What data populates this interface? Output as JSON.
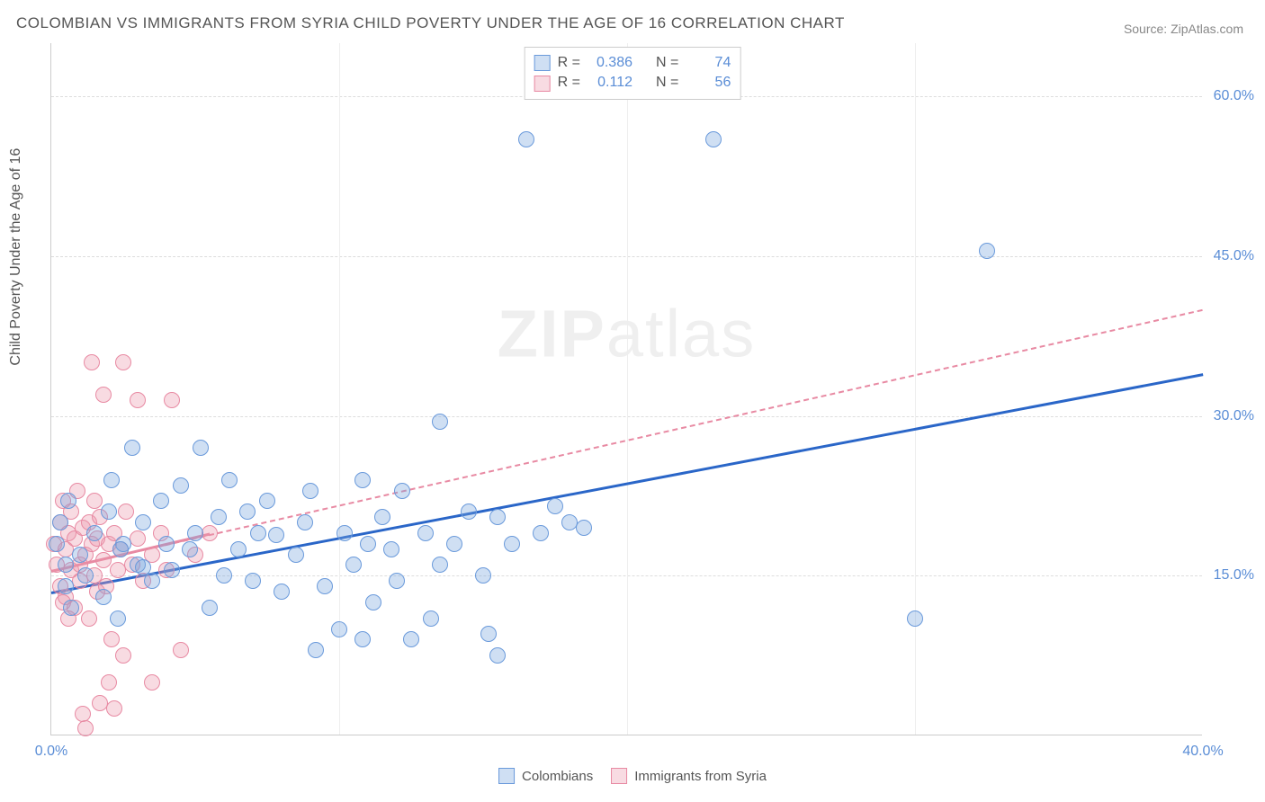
{
  "title": "COLOMBIAN VS IMMIGRANTS FROM SYRIA CHILD POVERTY UNDER THE AGE OF 16 CORRELATION CHART",
  "source": "Source: ZipAtlas.com",
  "ylabel": "Child Poverty Under the Age of 16",
  "watermark_strong": "ZIP",
  "watermark_light": "atlas",
  "chart": {
    "type": "scatter",
    "xlim": [
      0,
      40
    ],
    "ylim": [
      0,
      65
    ],
    "xticks": [
      {
        "v": 0,
        "label": "0.0%"
      },
      {
        "v": 40,
        "label": "40.0%"
      }
    ],
    "xgrid": [
      10,
      20,
      30
    ],
    "yticks": [
      {
        "v": 15,
        "label": "15.0%"
      },
      {
        "v": 30,
        "label": "30.0%"
      },
      {
        "v": 45,
        "label": "45.0%"
      },
      {
        "v": 60,
        "label": "60.0%"
      }
    ],
    "point_radius": 9,
    "series": [
      {
        "name": "Colombians",
        "fill": "rgba(118,162,222,0.35)",
        "stroke": "#6a9adb",
        "r_value": "0.386",
        "n_value": "74",
        "trend": {
          "x1": 0,
          "y1": 13.5,
          "x2": 40,
          "y2": 34,
          "style": "trend-solid",
          "color": "#2a66c8"
        },
        "points": [
          [
            0.2,
            18
          ],
          [
            0.3,
            20
          ],
          [
            0.5,
            16
          ],
          [
            0.5,
            14
          ],
          [
            0.6,
            22
          ],
          [
            0.7,
            12
          ],
          [
            1.0,
            17
          ],
          [
            1.2,
            15
          ],
          [
            1.5,
            19
          ],
          [
            1.8,
            13
          ],
          [
            2.0,
            21
          ],
          [
            2.1,
            24
          ],
          [
            2.3,
            11
          ],
          [
            2.5,
            18
          ],
          [
            2.8,
            27
          ],
          [
            3.0,
            16
          ],
          [
            3.2,
            20
          ],
          [
            3.5,
            14.5
          ],
          [
            3.8,
            22
          ],
          [
            4.0,
            18
          ],
          [
            4.2,
            15.5
          ],
          [
            4.5,
            23.5
          ],
          [
            4.8,
            17.5
          ],
          [
            5.0,
            19
          ],
          [
            5.2,
            27
          ],
          [
            5.5,
            12
          ],
          [
            5.8,
            20.5
          ],
          [
            6.0,
            15
          ],
          [
            6.2,
            24
          ],
          [
            6.5,
            17.5
          ],
          [
            6.8,
            21
          ],
          [
            7.0,
            14.5
          ],
          [
            7.2,
            19
          ],
          [
            7.5,
            22
          ],
          [
            7.8,
            18.8
          ],
          [
            8.0,
            13.5
          ],
          [
            8.5,
            17
          ],
          [
            8.8,
            20
          ],
          [
            9.0,
            23
          ],
          [
            9.5,
            14
          ],
          [
            10.0,
            10
          ],
          [
            10.2,
            19
          ],
          [
            10.5,
            16
          ],
          [
            10.8,
            24
          ],
          [
            11.0,
            18
          ],
          [
            11.2,
            12.5
          ],
          [
            11.5,
            20.5
          ],
          [
            11.8,
            17.5
          ],
          [
            12.0,
            14.5
          ],
          [
            12.2,
            23
          ],
          [
            12.5,
            9
          ],
          [
            13.0,
            19
          ],
          [
            13.2,
            11
          ],
          [
            13.5,
            29.5
          ],
          [
            13.5,
            16
          ],
          [
            14.0,
            18
          ],
          [
            14.5,
            21
          ],
          [
            15.0,
            15
          ],
          [
            15.2,
            9.5
          ],
          [
            15.5,
            20.5
          ],
          [
            16.0,
            18
          ],
          [
            16.5,
            56
          ],
          [
            17.0,
            19
          ],
          [
            17.5,
            21.5
          ],
          [
            18.0,
            20
          ],
          [
            18.5,
            19.5
          ],
          [
            23.0,
            56
          ],
          [
            30.0,
            11
          ],
          [
            32.5,
            45.5
          ],
          [
            2.4,
            17.5
          ],
          [
            3.2,
            15.8
          ],
          [
            9.2,
            8
          ],
          [
            10.8,
            9
          ],
          [
            15.5,
            7.5
          ]
        ]
      },
      {
        "name": "Immigrants from Syria",
        "fill": "rgba(236,152,173,0.35)",
        "stroke": "#e88aa3",
        "r_value": "0.112",
        "n_value": "56",
        "trend": {
          "x1": 0,
          "y1": 15.5,
          "x2": 40,
          "y2": 40,
          "style": "trend-dash",
          "color": "#e88aa3"
        },
        "trend_solid_segment": {
          "x1": 0,
          "y1": 15.5,
          "x2": 5.5,
          "y2": 19,
          "style": "trend-solid",
          "color": "#e88aa3"
        },
        "points": [
          [
            0.1,
            18
          ],
          [
            0.2,
            16
          ],
          [
            0.3,
            14
          ],
          [
            0.3,
            20
          ],
          [
            0.4,
            22
          ],
          [
            0.5,
            17.5
          ],
          [
            0.5,
            13
          ],
          [
            0.6,
            19
          ],
          [
            0.7,
            15.5
          ],
          [
            0.7,
            21
          ],
          [
            0.8,
            18.5
          ],
          [
            0.8,
            12
          ],
          [
            0.9,
            23
          ],
          [
            1.0,
            16
          ],
          [
            1.0,
            14.5
          ],
          [
            1.1,
            19.5
          ],
          [
            1.1,
            2
          ],
          [
            1.2,
            17
          ],
          [
            1.2,
            0.7
          ],
          [
            1.3,
            20
          ],
          [
            1.3,
            11
          ],
          [
            1.4,
            18
          ],
          [
            1.4,
            35
          ],
          [
            1.5,
            15
          ],
          [
            1.5,
            22
          ],
          [
            1.6,
            18.5
          ],
          [
            1.6,
            13.5
          ],
          [
            1.7,
            20.5
          ],
          [
            1.8,
            16.5
          ],
          [
            1.8,
            32
          ],
          [
            1.9,
            14
          ],
          [
            2.0,
            18
          ],
          [
            2.0,
            5
          ],
          [
            2.1,
            9
          ],
          [
            2.2,
            19
          ],
          [
            2.3,
            15.5
          ],
          [
            2.4,
            17.5
          ],
          [
            2.5,
            35
          ],
          [
            2.5,
            7.5
          ],
          [
            2.6,
            21
          ],
          [
            2.8,
            16
          ],
          [
            3.0,
            18.5
          ],
          [
            3.0,
            31.5
          ],
          [
            3.2,
            14.5
          ],
          [
            3.5,
            17
          ],
          [
            3.5,
            5
          ],
          [
            3.8,
            19
          ],
          [
            4.0,
            15.5
          ],
          [
            4.2,
            31.5
          ],
          [
            4.5,
            8
          ],
          [
            5.0,
            17
          ],
          [
            5.5,
            19
          ],
          [
            1.7,
            3
          ],
          [
            2.2,
            2.5
          ],
          [
            0.4,
            12.5
          ],
          [
            0.6,
            11
          ]
        ]
      }
    ]
  },
  "legend": {
    "series1_label": "Colombians",
    "series2_label": "Immigrants from Syria"
  }
}
